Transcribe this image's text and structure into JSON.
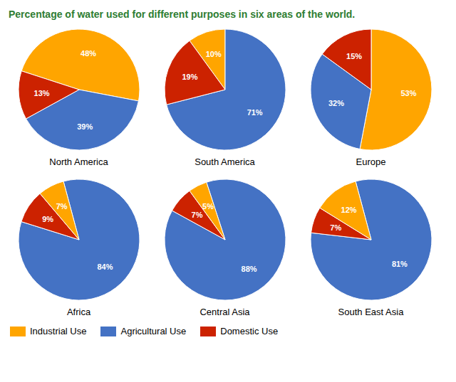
{
  "title": "Percentage of water used for different purposes in six areas of the world.",
  "legend": "bottom",
  "chart_data": [
    {
      "type": "pie",
      "title": "North America",
      "categories": [
        "Industrial Use",
        "Agricultural Use",
        "Domestic Use"
      ],
      "values": [
        48,
        39,
        13
      ],
      "value_labels": [
        "48%",
        "39%",
        "13%"
      ],
      "colors": [
        "#FFA500",
        "#4472C4",
        "#CC2200"
      ],
      "data_labels": true
    },
    {
      "type": "pie",
      "title": "South America",
      "categories": [
        "Industrial Use",
        "Agricultural Use",
        "Domestic Use"
      ],
      "values": [
        10,
        71,
        19
      ],
      "value_labels": [
        "10%",
        "71%",
        "19%"
      ],
      "colors": [
        "#FFA500",
        "#4472C4",
        "#CC2200"
      ],
      "data_labels": true
    },
    {
      "type": "pie",
      "title": "Europe",
      "categories": [
        "Industrial Use",
        "Agricultural Use",
        "Domestic Use"
      ],
      "values": [
        53,
        32,
        15
      ],
      "value_labels": [
        "53%",
        "32%",
        "15%"
      ],
      "colors": [
        "#FFA500",
        "#4472C4",
        "#CC2200"
      ],
      "data_labels": true
    },
    {
      "type": "pie",
      "title": "Africa",
      "categories": [
        "Agricultural Use",
        "Domestic Use",
        "Industrial Use"
      ],
      "values": [
        84,
        9,
        7
      ],
      "value_labels": [
        "84%",
        "9%",
        "7%"
      ],
      "colors": [
        "#4472C4",
        "#CC2200",
        "#FFA500"
      ],
      "data_labels": true
    },
    {
      "type": "pie",
      "title": "Central Asia",
      "categories": [
        "Agricultural Use",
        "Domestic Use",
        "Industrial Use"
      ],
      "values": [
        88,
        7,
        5
      ],
      "value_labels": [
        "88%",
        "7%",
        "5%"
      ],
      "colors": [
        "#4472C4",
        "#CC2200",
        "#FFA500"
      ],
      "data_labels": true
    },
    {
      "type": "pie",
      "title": "South East Asia",
      "categories": [
        "Agricultural Use",
        "Domestic Use",
        "Industrial Use"
      ],
      "values": [
        81,
        7,
        12
      ],
      "value_labels": [
        "81%",
        "7%",
        "12%"
      ],
      "colors": [
        "#4472C4",
        "#CC2200",
        "#FFA500"
      ],
      "data_labels": true
    }
  ]
}
